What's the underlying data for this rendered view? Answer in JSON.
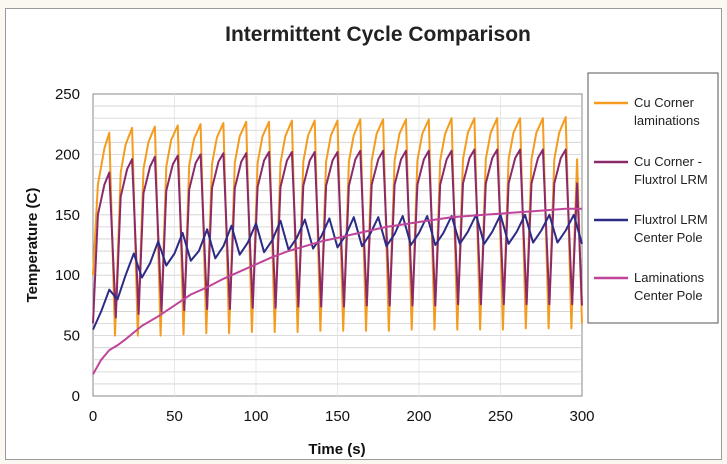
{
  "chart_data": {
    "type": "line",
    "title": "Intermittent Cycle Comparison",
    "xlabel": "Time (s)",
    "ylabel": "Temperature (C)",
    "xlim": [
      0,
      300
    ],
    "ylim": [
      0,
      250
    ],
    "xticks": [
      0,
      50,
      100,
      150,
      200,
      250,
      300
    ],
    "yticks": [
      0,
      50,
      100,
      150,
      200,
      250
    ],
    "grid": "horizontal minor lines every 10",
    "legend_position": "right",
    "series": [
      {
        "name": "Cu Corner laminations",
        "label_lines": [
          "Cu Corner",
          "laminations"
        ],
        "color": "#f39c1f",
        "x": [
          0,
          3,
          7,
          10,
          13.5,
          17,
          20,
          24,
          27.5,
          31,
          34,
          38,
          41.5,
          45,
          48,
          52,
          55.5,
          59,
          62,
          66,
          69.5,
          73,
          76,
          80,
          83.5,
          87,
          90,
          94,
          97.5,
          101,
          104,
          108,
          111.5,
          115,
          118,
          122,
          125.5,
          129,
          132,
          136,
          139.5,
          143,
          146,
          150,
          153.5,
          157,
          160,
          164,
          167.5,
          171,
          174,
          178,
          181.5,
          185,
          188,
          192,
          195.5,
          199,
          202,
          206,
          209.5,
          213,
          216,
          220,
          223.5,
          227,
          230,
          234,
          237.5,
          241,
          244,
          248,
          251.5,
          255,
          258,
          262,
          265.5,
          269,
          272,
          276,
          279.5,
          283,
          286,
          290,
          293.5,
          297,
          300
        ],
        "y": [
          100,
          175,
          205,
          218,
          50,
          185,
          208,
          222,
          50,
          188,
          210,
          223,
          50,
          190,
          212,
          224,
          51,
          191,
          213,
          225,
          52,
          192,
          214,
          226,
          52,
          193,
          215,
          227,
          53,
          193,
          215,
          227,
          53,
          193,
          215,
          228,
          53,
          194,
          216,
          228,
          54,
          194,
          216,
          228,
          54,
          194,
          216,
          229,
          54,
          195,
          217,
          229,
          54,
          195,
          217,
          229,
          55,
          195,
          217,
          229,
          55,
          195,
          217,
          230,
          55,
          196,
          218,
          230,
          55,
          196,
          218,
          230,
          55,
          196,
          218,
          230,
          56,
          196,
          218,
          230,
          56,
          196,
          218,
          231,
          56,
          196,
          60
        ]
      },
      {
        "name": "Cu Corner - Fluxtrol LRM",
        "label_lines": [
          "Cu Corner -",
          "Fluxtrol LRM"
        ],
        "color": "#8a2a6a",
        "x": [
          0,
          3,
          7,
          10,
          14,
          17,
          21,
          24,
          28,
          31,
          35,
          38,
          42,
          45,
          49,
          52,
          56,
          59,
          63,
          66,
          70,
          73,
          77,
          80,
          84,
          87,
          91,
          94,
          98,
          101,
          105,
          108,
          112,
          115,
          119,
          122,
          126,
          129,
          133,
          136,
          140,
          143,
          147,
          150,
          154,
          157,
          161,
          164,
          168,
          171,
          175,
          178,
          182,
          185,
          189,
          192,
          196,
          199,
          203,
          206,
          210,
          213,
          217,
          220,
          224,
          227,
          231,
          234,
          238,
          241,
          245,
          248,
          252,
          255,
          259,
          262,
          266,
          269,
          273,
          276,
          280,
          283,
          287,
          290,
          294,
          297,
          300
        ],
        "y": [
          60,
          150,
          175,
          185,
          65,
          165,
          188,
          196,
          68,
          168,
          190,
          198,
          70,
          170,
          192,
          199,
          71,
          171,
          193,
          200,
          72,
          172,
          194,
          201,
          72,
          172,
          194,
          201,
          73,
          173,
          195,
          202,
          73,
          173,
          195,
          202,
          74,
          174,
          195,
          202,
          74,
          174,
          195,
          202,
          74,
          174,
          196,
          203,
          75,
          175,
          196,
          203,
          75,
          175,
          196,
          203,
          75,
          175,
          196,
          203,
          75,
          175,
          196,
          203,
          76,
          176,
          197,
          204,
          76,
          176,
          197,
          204,
          76,
          176,
          197,
          204,
          76,
          176,
          197,
          204,
          76,
          176,
          197,
          204,
          76,
          176,
          75
        ]
      },
      {
        "name": "Fluxtrol LRM Center Pole",
        "label_lines": [
          "Fluxtrol LRM",
          "Center Pole"
        ],
        "color": "#2c2c86",
        "x": [
          0,
          5,
          10,
          15,
          20,
          25,
          30,
          35,
          40,
          45,
          50,
          55,
          60,
          65,
          70,
          75,
          80,
          85,
          90,
          95,
          100,
          105,
          110,
          115,
          120,
          125,
          130,
          135,
          140,
          145,
          150,
          155,
          160,
          165,
          170,
          175,
          180,
          185,
          190,
          195,
          200,
          205,
          210,
          215,
          220,
          225,
          230,
          235,
          240,
          245,
          250,
          255,
          260,
          265,
          270,
          275,
          280,
          285,
          290,
          295,
          300
        ],
        "y": [
          55,
          70,
          88,
          80,
          100,
          118,
          98,
          110,
          128,
          108,
          118,
          135,
          112,
          120,
          138,
          114,
          124,
          141,
          117,
          127,
          143,
          119,
          129,
          145,
          121,
          131,
          146,
          122,
          132,
          147,
          123,
          133,
          148,
          124,
          134,
          148,
          124,
          134,
          149,
          125,
          135,
          149,
          125,
          135,
          149,
          126,
          136,
          150,
          126,
          136,
          150,
          126,
          136,
          150,
          127,
          137,
          150,
          127,
          137,
          150,
          126
        ]
      },
      {
        "name": "Laminations Center Pole",
        "label_lines": [
          "Laminations",
          "Center Pole"
        ],
        "color": "#c0449a",
        "x": [
          0,
          5,
          10,
          15,
          20,
          30,
          40,
          50,
          60,
          70,
          80,
          90,
          100,
          110,
          120,
          130,
          140,
          150,
          160,
          170,
          180,
          190,
          200,
          210,
          220,
          230,
          240,
          250,
          260,
          270,
          280,
          290,
          300
        ],
        "y": [
          18,
          30,
          38,
          42,
          47,
          58,
          66,
          75,
          84,
          90,
          97,
          103,
          109,
          115,
          120,
          124,
          128,
          131,
          134,
          137,
          140,
          142,
          144,
          146,
          148,
          149,
          150,
          151,
          152,
          153,
          154,
          155,
          155
        ]
      }
    ]
  }
}
